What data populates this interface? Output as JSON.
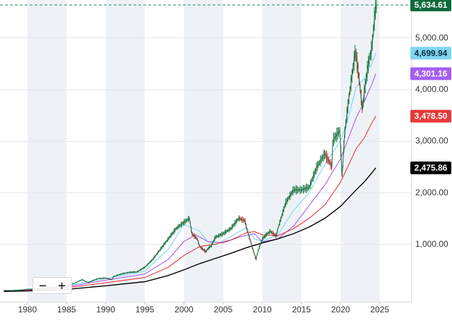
{
  "chart_data": {
    "type": "candlestick-line",
    "x_ticks": [
      "1980",
      "1985",
      "1990",
      "1995",
      "2000",
      "2005",
      "2010",
      "2015",
      "2020",
      "2025"
    ],
    "y_ticks": [
      "1,000.00",
      "2,000.00",
      "3,000.00",
      "4,000.00",
      "5,000.00"
    ],
    "xlim": [
      1976.5,
      2029
    ],
    "ylim": [
      -120,
      5730
    ],
    "price_line": {
      "value": 5634.61,
      "label": "5,634.61"
    },
    "badges": [
      {
        "label": "5,634.61",
        "value": 5634.61,
        "color": "#0e6b3b",
        "text_color": "#ffffff"
      },
      {
        "label": "4,699.94",
        "value": 4699.94,
        "color": "#7fd6f2",
        "text_color": "#0b2a38"
      },
      {
        "label": "4,301.16",
        "value": 4301.16,
        "color": "#a45ef2",
        "text_color": "#ffffff"
      },
      {
        "label": "3,478.50",
        "value": 3478.5,
        "color": "#e83a3a",
        "text_color": "#ffffff"
      },
      {
        "label": "2,475.86",
        "value": 2475.86,
        "color": "#000000",
        "text_color": "#ffffff"
      }
    ],
    "price": {
      "name": "",
      "x": [
        1977,
        1978,
        1979,
        1980,
        1981,
        1982,
        1983,
        1984,
        1985,
        1986,
        1987,
        1987.8,
        1988,
        1989,
        1990,
        1990.8,
        1991,
        1992,
        1993,
        1994,
        1995,
        1996,
        1997,
        1998,
        1999,
        2000,
        2000.7,
        2001,
        2001.7,
        2002,
        2002.8,
        2003,
        2003.5,
        2004,
        2005,
        2006,
        2007,
        2007.8,
        2008,
        2008.7,
        2009.2,
        2009.5,
        2010,
        2011,
        2011.8,
        2012,
        2013,
        2014,
        2015,
        2016,
        2017,
        2018,
        2018.9,
        2019,
        2019.9,
        2020.2,
        2020.5,
        2021,
        2021.9,
        2022.3,
        2022.8,
        2023,
        2023.5,
        2024,
        2024.4,
        2024.6
      ],
      "y": [
        100,
        95,
        105,
        125,
        125,
        130,
        165,
        160,
        200,
        240,
        310,
        250,
        270,
        330,
        340,
        310,
        370,
        420,
        450,
        460,
        550,
        700,
        900,
        1100,
        1300,
        1420,
        1500,
        1200,
        1100,
        950,
        850,
        900,
        970,
        1130,
        1200,
        1300,
        1500,
        1450,
        1300,
        950,
        700,
        880,
        1100,
        1250,
        1150,
        1300,
        1800,
        2050,
        2050,
        2100,
        2500,
        2750,
        2500,
        3000,
        3200,
        2300,
        3100,
        3750,
        4750,
        4300,
        3600,
        3900,
        4450,
        4800,
        5500,
        5634.61
      ]
    },
    "ma_series": [
      {
        "name": "",
        "color": "#7fd6f2",
        "x": [
          1977,
          1980,
          1985,
          1990,
          1995,
          1998,
          2000,
          2002,
          2003,
          2004,
          2006,
          2008,
          2009,
          2010,
          2012,
          2014,
          2016,
          2018,
          2020,
          2021,
          2022,
          2023,
          2024,
          2024.5
        ],
        "y": [
          100,
          115,
          190,
          330,
          470,
          900,
          1380,
          1250,
          1050,
          980,
          1150,
          1320,
          1100,
          1050,
          1180,
          1650,
          2000,
          2550,
          3000,
          3450,
          4050,
          4200,
          4500,
          4699.94
        ]
      },
      {
        "name": "",
        "color": "#a45ef2",
        "x": [
          1977,
          1980,
          1985,
          1990,
          1995,
          1998,
          2000,
          2001.5,
          2003,
          2005,
          2007,
          2009,
          2010,
          2012,
          2014,
          2016,
          2018,
          2020,
          2021,
          2022,
          2023,
          2024,
          2024.5
        ],
        "y": [
          95,
          108,
          170,
          300,
          420,
          700,
          1050,
          1180,
          1050,
          1020,
          1130,
          1200,
          1040,
          1100,
          1350,
          1750,
          2150,
          2650,
          3050,
          3450,
          3750,
          4100,
          4301.16
        ]
      },
      {
        "name": "",
        "color": "#e83a3a",
        "x": [
          1977,
          1980,
          1985,
          1990,
          1995,
          1998,
          2000,
          2002,
          2004,
          2006,
          2008,
          2009,
          2010,
          2012,
          2014,
          2016,
          2018,
          2020,
          2022,
          2023,
          2024,
          2024.5
        ],
        "y": [
          90,
          100,
          150,
          250,
          350,
          550,
          780,
          950,
          1000,
          1080,
          1220,
          1240,
          1180,
          1160,
          1300,
          1500,
          1760,
          2200,
          2850,
          3050,
          3350,
          3478.5
        ]
      },
      {
        "name": "",
        "color": "#000000",
        "x": [
          1977,
          1980,
          1985,
          1990,
          1995,
          1998,
          2000,
          2002,
          2004,
          2006,
          2008,
          2010,
          2012,
          2014,
          2016,
          2018,
          2020,
          2022,
          2023,
          2024,
          2024.5
        ],
        "y": [
          80,
          90,
          120,
          190,
          270,
          390,
          500,
          620,
          720,
          820,
          930,
          1020,
          1100,
          1200,
          1330,
          1500,
          1730,
          2050,
          2200,
          2380,
          2475.86
        ]
      }
    ]
  },
  "zoom": {
    "minus": "−",
    "plus": "+"
  }
}
